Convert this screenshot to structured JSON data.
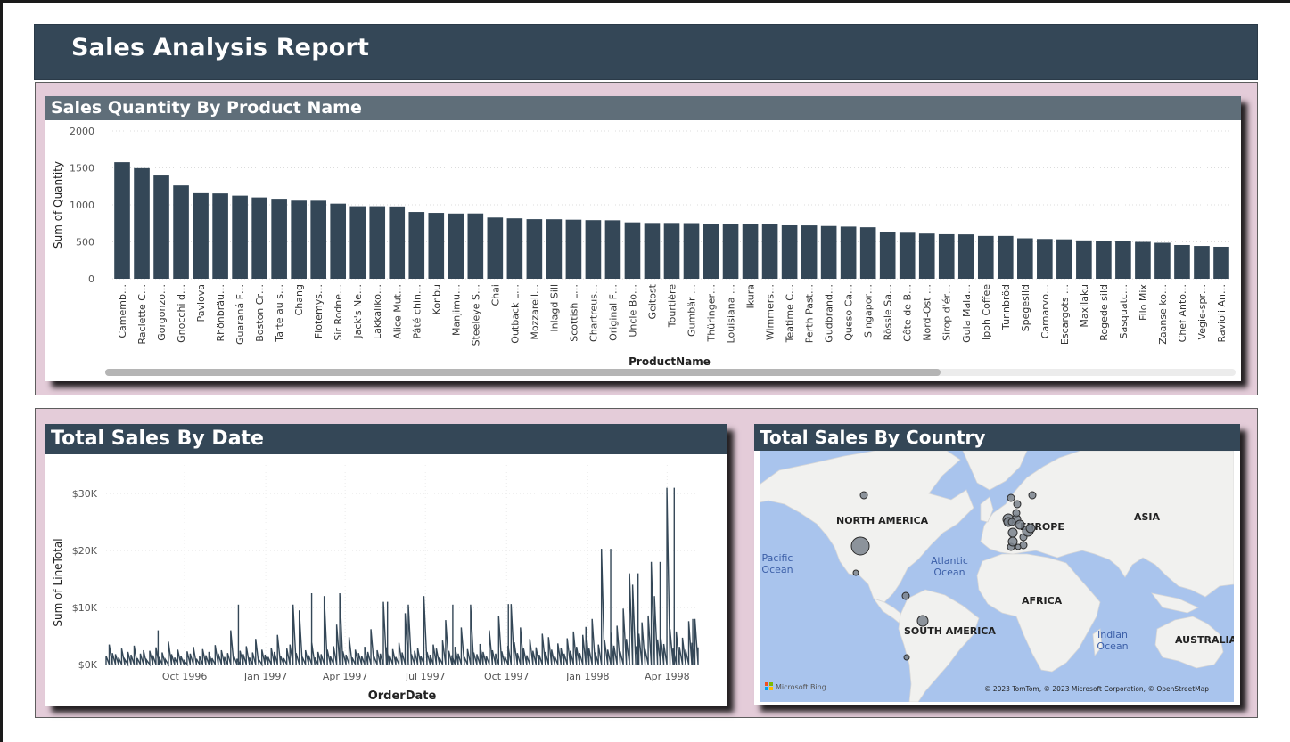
{
  "report": {
    "title": "Sales Analysis Report"
  },
  "colors": {
    "banner": "#344757",
    "section_bg": "#e4ccd9",
    "bar": "#344757",
    "card_header_dark": "#344757",
    "card_header_light": "#5f6e79",
    "map_water": "#a9c4ed",
    "map_land": "#f1f1ef",
    "bubble": "#7a828c"
  },
  "cards": {
    "quantity": {
      "title": "Sales Quantity By Product Name"
    },
    "date": {
      "title": "Total Sales By Date"
    },
    "country": {
      "title": "Total Sales By Country"
    }
  },
  "map": {
    "labels": [
      "NORTH AMERICA",
      "EUROPE",
      "ASIA",
      "AFRICA",
      "SOUTH AMERICA",
      "AUSTRALIA"
    ],
    "ocean_labels": [
      "Pacific Ocean",
      "Atlantic Ocean",
      "Indian Ocean"
    ],
    "attribution": "© 2023 TomTom, © 2023 Microsoft Corporation, © OpenStreetMap",
    "brand": "Microsoft Bing"
  },
  "chart_data": [
    {
      "type": "bar",
      "title": "Sales Quantity By Product Name",
      "xlabel": "ProductName",
      "ylabel": "Sum of Quantity",
      "ylim": [
        0,
        2000
      ],
      "yticks": [
        0,
        500,
        1000,
        1500,
        2000
      ],
      "categories": [
        "Camemb…",
        "Raclette C…",
        "Gorgonzo…",
        "Gnocchi d…",
        "Pavlova",
        "Rhönbräu…",
        "Guaraná F…",
        "Boston Cr…",
        "Tarte au s…",
        "Chang",
        "Flotemys…",
        "Sir Rodne…",
        "Jack's Ne…",
        "Lakkalikö…",
        "Alice Mut…",
        "Pâté chin…",
        "Konbu",
        "Manjimu…",
        "Steeleye S…",
        "Chai",
        "Outback L…",
        "Mozzarell…",
        "Inlagd Sill",
        "Scottish L…",
        "Chartreus…",
        "Original F…",
        "Uncle Bo…",
        "Geitost",
        "Tourtière",
        "Gumbär …",
        "Thüringer…",
        "Louisiana …",
        "Ikura",
        "Wimmers…",
        "Teatime C…",
        "Perth Past…",
        "Gudbrand…",
        "Queso Ca…",
        "Singapor…",
        "Rössle Sa…",
        "Côte de B…",
        "Nord-Ost …",
        "Sirop d'ér…",
        "Gula Mala…",
        "Ipoh Coffee",
        "Tunnbröd",
        "Spegesild",
        "Carnarvo…",
        "Escargots …",
        "Maxilaku",
        "Rogede sild",
        "Sasquatc…",
        "Filo Mix",
        "Zaanse ko…",
        "Chef Anto…",
        "Vegie-spr…",
        "Ravioli An…"
      ],
      "values": [
        1577,
        1496,
        1397,
        1263,
        1158,
        1155,
        1125,
        1101,
        1083,
        1057,
        1056,
        1016,
        981,
        981,
        978,
        903,
        891,
        882,
        883,
        828,
        817,
        806,
        805,
        799,
        793,
        791,
        763,
        755,
        755,
        753,
        746,
        745,
        742,
        740,
        723,
        722,
        714,
        706,
        697,
        635,
        623,
        612,
        603,
        601,
        580,
        580,
        548,
        539,
        534,
        520,
        508,
        506,
        500,
        488,
        458,
        445,
        434
      ]
    },
    {
      "type": "line",
      "title": "Total Sales By Date",
      "xlabel": "OrderDate",
      "ylabel": "Sum of LineTotal",
      "ylim": [
        0,
        35000
      ],
      "yticks": [
        "$0K",
        "$10K",
        "$20K",
        "$30K"
      ],
      "xticks": [
        "Oct 1996",
        "Jan 1997",
        "Apr 1997",
        "Jul 1997",
        "Oct 1997",
        "Jan 1998",
        "Apr 1998"
      ],
      "x_range": [
        "1996-07-04",
        "1998-05-06"
      ],
      "peaks": [
        {
          "date": "1996-09-01",
          "value": 6000
        },
        {
          "date": "1996-12-01",
          "value": 10500
        },
        {
          "date": "1997-02-22",
          "value": 12500
        },
        {
          "date": "1997-05-19",
          "value": 11000
        },
        {
          "date": "1997-08-01",
          "value": 10500
        },
        {
          "date": "1997-10-03",
          "value": 10600
        },
        {
          "date": "1998-01-27",
          "value": 20300
        },
        {
          "date": "1998-02-27",
          "value": 16000
        },
        {
          "date": "1998-03-24",
          "value": 18000
        },
        {
          "date": "1998-04-09",
          "value": 31000
        },
        {
          "date": "1998-04-30",
          "value": 8000
        }
      ],
      "series": [
        {
          "values": [
            1500,
            3500,
            2000,
            1800,
            1200,
            2800,
            900,
            2200,
            1700,
            3300,
            1100,
            1900,
            2500,
            800,
            2400,
            1600,
            3000,
            1300,
            2100,
            900,
            4000,
            1800,
            1200,
            2600,
            1500,
            700,
            2300,
            1900,
            3100,
            1000,
            1400,
            2700,
            1600,
            2200,
            1100,
            3400,
            1900,
            2500,
            1300,
            2000,
            6000,
            1500,
            1000,
            2400,
            1800,
            3200,
            1200,
            2100,
            4500,
            900,
            2600,
            1700,
            1300,
            2900,
            2200,
            5200,
            1500,
            1100,
            2800,
            3500,
            10500,
            2000,
            9500,
            1300,
            2500,
            1600,
            3800,
            1200,
            2200,
            1800,
            12000,
            2600,
            1400,
            3200,
            7000,
            12500,
            2300,
            1700,
            4800,
            1200,
            2600,
            2000,
            1500,
            3100,
            2200,
            6200,
            1400,
            2500,
            1900,
            11000,
            3000,
            1600,
            2700,
            1300,
            3800,
            2100,
            9000,
            10500,
            1800,
            2400,
            2900,
            1500,
            12000,
            2200,
            1700,
            3500,
            2800,
            1200,
            4200,
            7800,
            2400,
            1600,
            3100,
            1900,
            6500,
            1300,
            2700,
            10500,
            2100,
            1800,
            3600,
            2200,
            1500,
            6000,
            2500,
            1900,
            8500,
            2300,
            1400,
            3300,
            10600,
            3900,
            2000,
            6500,
            2800,
            1600,
            4500,
            2400,
            3000,
            1700,
            5400,
            2200,
            4800,
            2600,
            1400,
            3700,
            2900,
            1900,
            4600,
            2400,
            5800,
            3100,
            2000,
            5200,
            6600,
            2800,
            8000,
            2100,
            3500,
            20300,
            4200,
            2600,
            5600,
            3300,
            6800,
            2300,
            9800,
            4500,
            16000,
            14000,
            3200,
            5400,
            7400,
            2700,
            8600,
            18000,
            12000,
            4400,
            5000,
            3600,
            31000,
            6200,
            2800,
            5800,
            3100,
            4700,
            2600,
            7600,
            3800,
            8000,
            3000
          ]
        }
      ]
    }
  ]
}
